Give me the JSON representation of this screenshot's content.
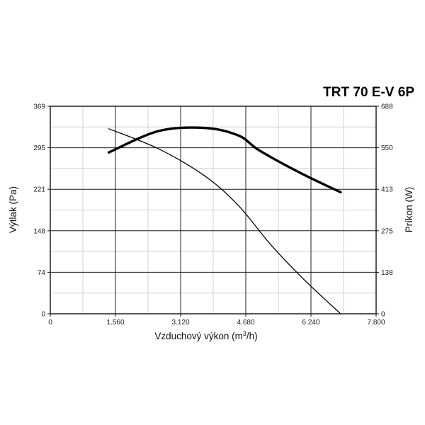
{
  "chart_data": {
    "type": "line",
    "title": "TRT 70 E-V 6P",
    "xlabel": "Vzduchový výkon (m",
    "xlabel_sup": "3",
    "xlabel_suffix": "/h)",
    "ylabel_left": "Výtlak (Pa)",
    "ylabel_right": "Príkon (W)",
    "x_ticks": [
      "0",
      "1.560",
      "3.120",
      "4.680",
      "6.240",
      "7.800"
    ],
    "y_left_ticks": [
      "0",
      "74",
      "148",
      "221",
      "295",
      "369"
    ],
    "y_right_ticks": [
      "0",
      "138",
      "275",
      "413",
      "550",
      "688"
    ],
    "xlim": [
      0,
      7800
    ],
    "ylim_left": [
      0,
      369
    ],
    "ylim_right": [
      0,
      688
    ],
    "grid": true,
    "legend": "none",
    "series": [
      {
        "axis": "left",
        "line_weight": "thin",
        "x": [
          1400,
          2600,
          3720,
          4520,
          5300,
          6100,
          6950
        ],
        "values": [
          329,
          293,
          244,
          191,
          121,
          59,
          0
        ]
      },
      {
        "axis": "right",
        "line_weight": "thick",
        "x": [
          1400,
          2600,
          3720,
          4520,
          5000,
          6000,
          6950
        ],
        "values": [
          535,
          606,
          616,
          590,
          542,
          466,
          403
        ]
      }
    ]
  }
}
